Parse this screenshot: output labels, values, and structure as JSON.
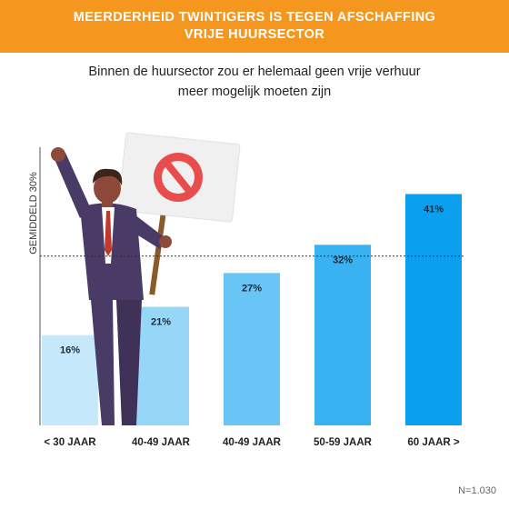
{
  "header": {
    "title_line1": "MEERDERHEID TWINTIGERS IS TEGEN AFSCHAFFING",
    "title_line2": "VRIJE HUURSECTOR"
  },
  "subtitle": {
    "line1": "Binnen de huursector zou er helemaal geen vrije verhuur",
    "line2": "meer mogelijk moeten zijn"
  },
  "footnote": "N=1.030",
  "colors": {
    "banner": "#f5971e",
    "bar_light": "#c5e9fb",
    "bar_dark": "#0aa0ef"
  },
  "chart_data": {
    "type": "bar",
    "categories": [
      "< 30 JAAR",
      "40-49 JAAR",
      "40-49 JAAR",
      "50-59 JAAR",
      "60 JAAR >"
    ],
    "values": [
      16,
      21,
      27,
      32,
      41
    ],
    "value_labels": [
      "16%",
      "21%",
      "27%",
      "32%",
      "41%"
    ],
    "ylim": [
      0,
      48
    ],
    "grid": false,
    "reference_line": {
      "value": 30,
      "label": "GEMIDDELD 30%",
      "style": "dotted"
    },
    "illustration": "businessman holding protest sign with prohibition symbol"
  }
}
